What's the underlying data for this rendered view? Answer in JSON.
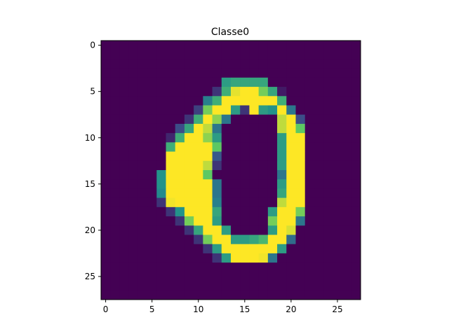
{
  "chart_data": {
    "type": "heatmap",
    "title": "Classe0",
    "xlabel": "",
    "ylabel": "",
    "colormap": "viridis",
    "value_range": [
      0,
      255
    ],
    "x_ticks": [
      0,
      5,
      10,
      15,
      20,
      25
    ],
    "y_ticks": [
      0,
      5,
      10,
      15,
      20,
      25
    ],
    "x_tick_labels": [
      "0",
      "5",
      "10",
      "15",
      "20",
      "25"
    ],
    "y_tick_labels": [
      "0",
      "5",
      "10",
      "15",
      "20",
      "25"
    ],
    "grid": false,
    "legend": "none",
    "rows": [
      [
        0,
        0,
        0,
        0,
        0,
        0,
        0,
        0,
        0,
        0,
        0,
        0,
        0,
        0,
        0,
        0,
        0,
        0,
        0,
        0,
        0,
        0,
        0,
        0,
        0,
        0,
        0,
        0
      ],
      [
        0,
        0,
        0,
        0,
        0,
        0,
        0,
        0,
        0,
        0,
        0,
        0,
        0,
        0,
        0,
        0,
        0,
        0,
        0,
        0,
        0,
        0,
        0,
        0,
        0,
        0,
        0,
        0
      ],
      [
        0,
        0,
        0,
        0,
        0,
        0,
        0,
        0,
        0,
        0,
        0,
        0,
        0,
        0,
        0,
        0,
        0,
        0,
        0,
        0,
        0,
        0,
        0,
        0,
        0,
        0,
        0,
        0
      ],
      [
        0,
        0,
        0,
        0,
        0,
        0,
        0,
        0,
        0,
        0,
        0,
        0,
        0,
        0,
        0,
        0,
        0,
        0,
        0,
        0,
        0,
        0,
        0,
        0,
        0,
        0,
        0,
        0
      ],
      [
        0,
        0,
        0,
        0,
        0,
        0,
        0,
        0,
        0,
        0,
        0,
        0,
        0,
        140,
        150,
        150,
        150,
        150,
        0,
        0,
        0,
        0,
        0,
        0,
        0,
        0,
        0,
        0
      ],
      [
        0,
        0,
        0,
        0,
        0,
        0,
        0,
        0,
        0,
        0,
        0,
        0,
        40,
        160,
        245,
        255,
        255,
        200,
        150,
        20,
        0,
        0,
        0,
        0,
        0,
        0,
        0,
        0
      ],
      [
        0,
        0,
        0,
        0,
        0,
        0,
        0,
        0,
        0,
        0,
        0,
        110,
        160,
        255,
        255,
        255,
        255,
        255,
        255,
        160,
        0,
        0,
        0,
        0,
        0,
        0,
        0,
        0
      ],
      [
        0,
        0,
        0,
        0,
        0,
        0,
        0,
        0,
        0,
        0,
        50,
        200,
        255,
        255,
        140,
        40,
        255,
        140,
        130,
        255,
        100,
        0,
        0,
        0,
        0,
        0,
        0,
        0
      ],
      [
        0,
        0,
        0,
        0,
        0,
        0,
        0,
        0,
        0,
        40,
        160,
        255,
        210,
        100,
        0,
        0,
        0,
        0,
        0,
        230,
        255,
        60,
        0,
        0,
        0,
        0,
        0,
        0
      ],
      [
        0,
        0,
        0,
        0,
        0,
        0,
        0,
        0,
        60,
        150,
        255,
        230,
        100,
        0,
        0,
        0,
        0,
        0,
        0,
        230,
        255,
        190,
        0,
        0,
        0,
        0,
        0,
        0
      ],
      [
        0,
        0,
        0,
        0,
        0,
        0,
        0,
        30,
        160,
        255,
        255,
        210,
        140,
        0,
        0,
        0,
        0,
        0,
        0,
        140,
        255,
        255,
        0,
        0,
        0,
        0,
        0,
        0
      ],
      [
        0,
        0,
        0,
        0,
        0,
        0,
        0,
        160,
        255,
        255,
        255,
        255,
        190,
        0,
        0,
        0,
        0,
        0,
        0,
        140,
        255,
        255,
        0,
        0,
        0,
        0,
        0,
        0
      ],
      [
        0,
        0,
        0,
        0,
        0,
        0,
        0,
        255,
        255,
        255,
        255,
        255,
        70,
        0,
        0,
        0,
        0,
        0,
        0,
        140,
        255,
        255,
        0,
        0,
        0,
        0,
        0,
        0
      ],
      [
        0,
        0,
        0,
        0,
        0,
        0,
        0,
        255,
        255,
        255,
        255,
        230,
        40,
        0,
        0,
        0,
        0,
        0,
        0,
        140,
        255,
        255,
        0,
        0,
        0,
        0,
        0,
        0
      ],
      [
        0,
        0,
        0,
        0,
        0,
        0,
        130,
        255,
        255,
        255,
        255,
        190,
        0,
        0,
        0,
        0,
        0,
        0,
        0,
        100,
        255,
        255,
        0,
        0,
        0,
        0,
        0,
        0
      ],
      [
        0,
        0,
        0,
        0,
        0,
        0,
        130,
        255,
        255,
        255,
        255,
        255,
        100,
        0,
        0,
        0,
        0,
        0,
        0,
        140,
        255,
        255,
        0,
        0,
        0,
        0,
        0,
        0
      ],
      [
        0,
        0,
        0,
        0,
        0,
        0,
        120,
        255,
        255,
        255,
        255,
        255,
        100,
        0,
        0,
        0,
        0,
        0,
        0,
        150,
        255,
        255,
        0,
        0,
        0,
        0,
        0,
        0
      ],
      [
        0,
        0,
        0,
        0,
        0,
        0,
        40,
        250,
        255,
        255,
        255,
        255,
        110,
        0,
        0,
        0,
        0,
        0,
        0,
        230,
        255,
        255,
        0,
        0,
        0,
        0,
        0,
        0
      ],
      [
        0,
        0,
        0,
        0,
        0,
        0,
        0,
        40,
        130,
        255,
        255,
        255,
        150,
        0,
        0,
        0,
        0,
        0,
        140,
        255,
        255,
        200,
        0,
        0,
        0,
        0,
        0,
        0
      ],
      [
        0,
        0,
        0,
        0,
        0,
        0,
        0,
        0,
        40,
        200,
        255,
        255,
        140,
        0,
        0,
        0,
        0,
        0,
        200,
        255,
        255,
        100,
        0,
        0,
        0,
        0,
        0,
        0
      ],
      [
        0,
        0,
        0,
        0,
        0,
        0,
        0,
        0,
        0,
        40,
        150,
        255,
        255,
        140,
        0,
        0,
        0,
        0,
        140,
        255,
        240,
        0,
        0,
        0,
        0,
        0,
        0,
        0
      ],
      [
        0,
        0,
        0,
        0,
        0,
        0,
        0,
        0,
        0,
        0,
        40,
        200,
        255,
        255,
        140,
        140,
        150,
        170,
        255,
        255,
        90,
        0,
        0,
        0,
        0,
        0,
        0,
        0
      ],
      [
        0,
        0,
        0,
        0,
        0,
        0,
        0,
        0,
        0,
        0,
        0,
        40,
        140,
        255,
        255,
        255,
        255,
        255,
        255,
        140,
        0,
        0,
        0,
        0,
        0,
        0,
        0,
        0
      ],
      [
        0,
        0,
        0,
        0,
        0,
        0,
        0,
        0,
        0,
        0,
        0,
        0,
        40,
        140,
        255,
        255,
        255,
        250,
        100,
        0,
        0,
        0,
        0,
        0,
        0,
        0,
        0,
        0
      ],
      [
        0,
        0,
        0,
        0,
        0,
        0,
        0,
        0,
        0,
        0,
        0,
        0,
        0,
        0,
        0,
        0,
        0,
        0,
        0,
        0,
        0,
        0,
        0,
        0,
        0,
        0,
        0,
        0
      ],
      [
        0,
        0,
        0,
        0,
        0,
        0,
        0,
        0,
        0,
        0,
        0,
        0,
        0,
        0,
        0,
        0,
        0,
        0,
        0,
        0,
        0,
        0,
        0,
        0,
        0,
        0,
        0,
        0
      ],
      [
        0,
        0,
        0,
        0,
        0,
        0,
        0,
        0,
        0,
        0,
        0,
        0,
        0,
        0,
        0,
        0,
        0,
        0,
        0,
        0,
        0,
        0,
        0,
        0,
        0,
        0,
        0,
        0
      ],
      [
        0,
        0,
        0,
        0,
        0,
        0,
        0,
        0,
        0,
        0,
        0,
        0,
        0,
        0,
        0,
        0,
        0,
        0,
        0,
        0,
        0,
        0,
        0,
        0,
        0,
        0,
        0,
        0
      ]
    ]
  }
}
